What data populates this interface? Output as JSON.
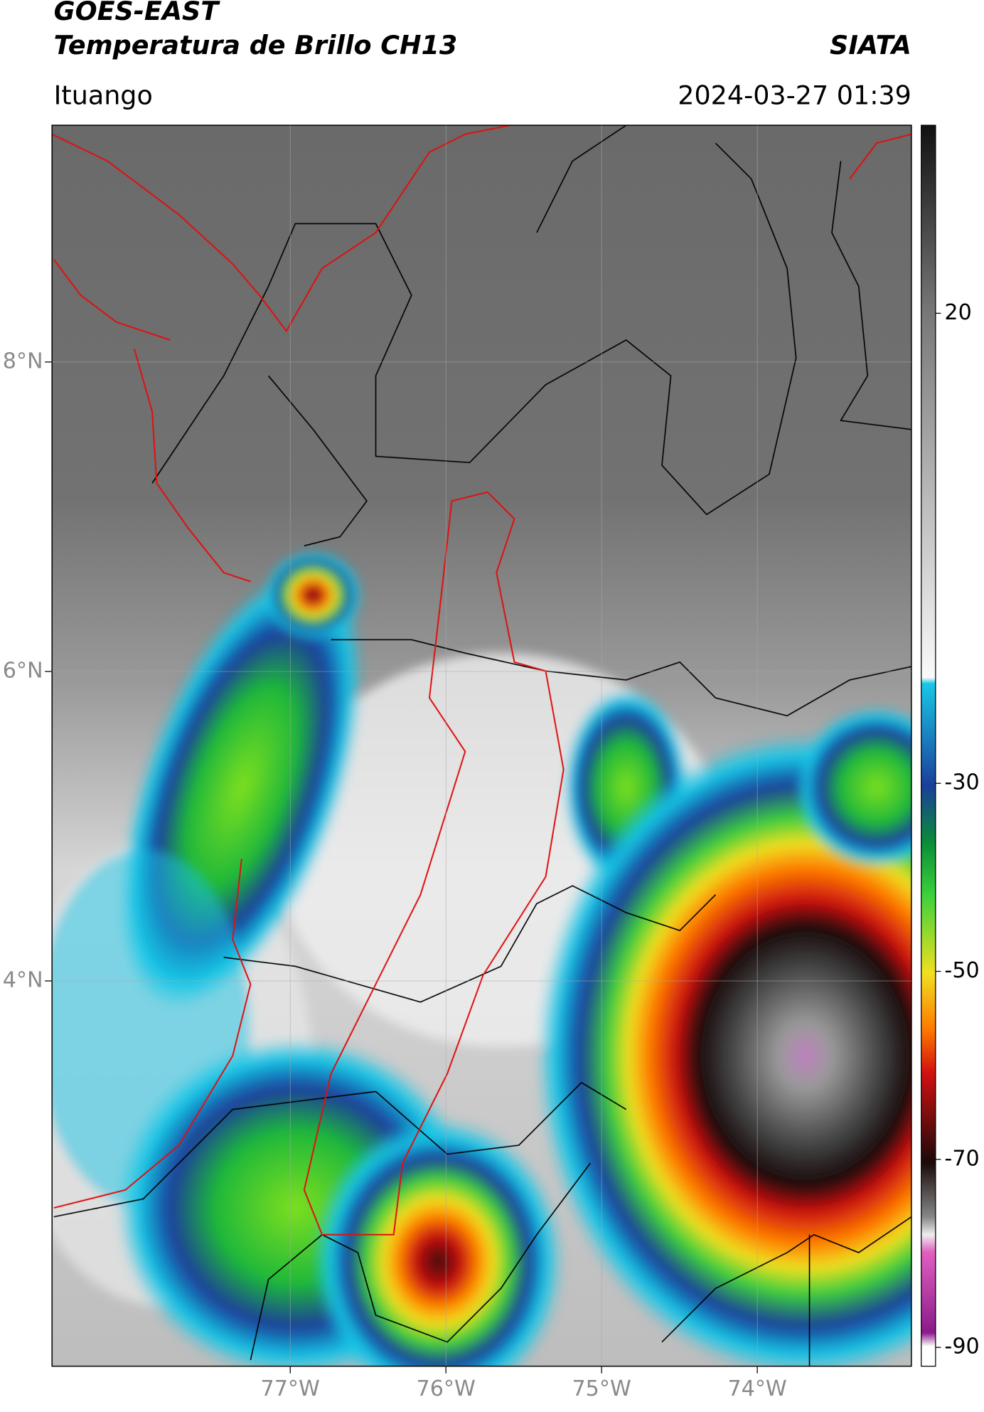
{
  "header": {
    "title": "GOES-EAST",
    "subtitle": "Temperatura de Brillo CH13",
    "brand": "SIATA",
    "location": "Ituango",
    "timestamp": "2024-03-27 01:39"
  },
  "map": {
    "xlim": [
      -78.53,
      -73.01
    ],
    "ylim": [
      1.51,
      9.53
    ],
    "xticks": [
      {
        "value": -77,
        "label": "77°W"
      },
      {
        "value": -76,
        "label": "76°W"
      },
      {
        "value": -75,
        "label": "75°W"
      },
      {
        "value": -74,
        "label": "74°W"
      }
    ],
    "yticks": [
      {
        "value": 8,
        "label": "8°N"
      },
      {
        "value": 6,
        "label": "6°N"
      },
      {
        "value": 4,
        "label": "4°N"
      }
    ]
  },
  "colorbar": {
    "lim": [
      -92,
      40
    ],
    "ticks": [
      20,
      -30,
      -50,
      -70,
      -90
    ]
  }
}
